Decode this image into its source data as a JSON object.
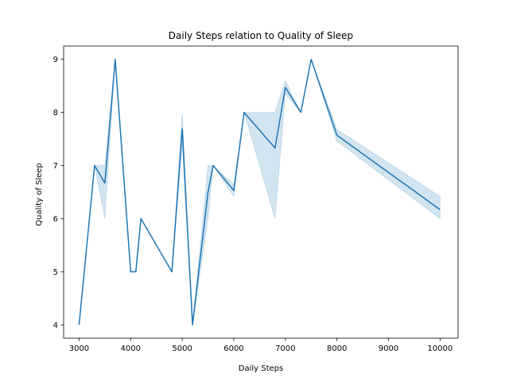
{
  "chart_data": {
    "type": "line",
    "title": "Daily Steps relation to Quality of Sleep",
    "xlabel": "Daily Steps",
    "ylabel": "Quality of Sleep",
    "xlim": [
      2700,
      10350
    ],
    "ylim": [
      3.75,
      9.25
    ],
    "xticks": [
      3000,
      4000,
      5000,
      6000,
      7000,
      8000,
      9000,
      10000
    ],
    "yticks": [
      4,
      5,
      6,
      7,
      8,
      9
    ],
    "grid": false,
    "legend": false,
    "colors": {
      "line": "#1f77b4",
      "band": "#1f77b4"
    },
    "series": [
      {
        "x": [
          3000,
          3300,
          3500,
          3700,
          4000,
          4100,
          4200,
          4800,
          5000,
          5200,
          5500,
          5600,
          6000,
          6200,
          6800,
          7000,
          7300,
          7500,
          8000,
          10000
        ],
        "y": [
          4.0,
          7.0,
          6.67,
          9.0,
          5.0,
          5.0,
          6.0,
          5.0,
          7.69,
          4.0,
          6.5,
          7.0,
          6.53,
          8.0,
          7.33,
          8.47,
          8.0,
          9.0,
          7.57,
          6.17
        ],
        "ci_low": [
          4.0,
          7.0,
          6.0,
          9.0,
          5.0,
          5.0,
          6.0,
          5.0,
          7.38,
          4.0,
          6.0,
          7.0,
          6.42,
          8.0,
          6.0,
          8.35,
          8.0,
          9.0,
          7.46,
          6.0
        ],
        "ci_high": [
          4.0,
          7.0,
          7.0,
          9.0,
          5.0,
          5.0,
          6.0,
          5.0,
          8.0,
          4.0,
          7.0,
          7.0,
          6.64,
          8.0,
          8.0,
          8.6,
          8.0,
          9.0,
          7.68,
          6.42
        ]
      }
    ]
  }
}
